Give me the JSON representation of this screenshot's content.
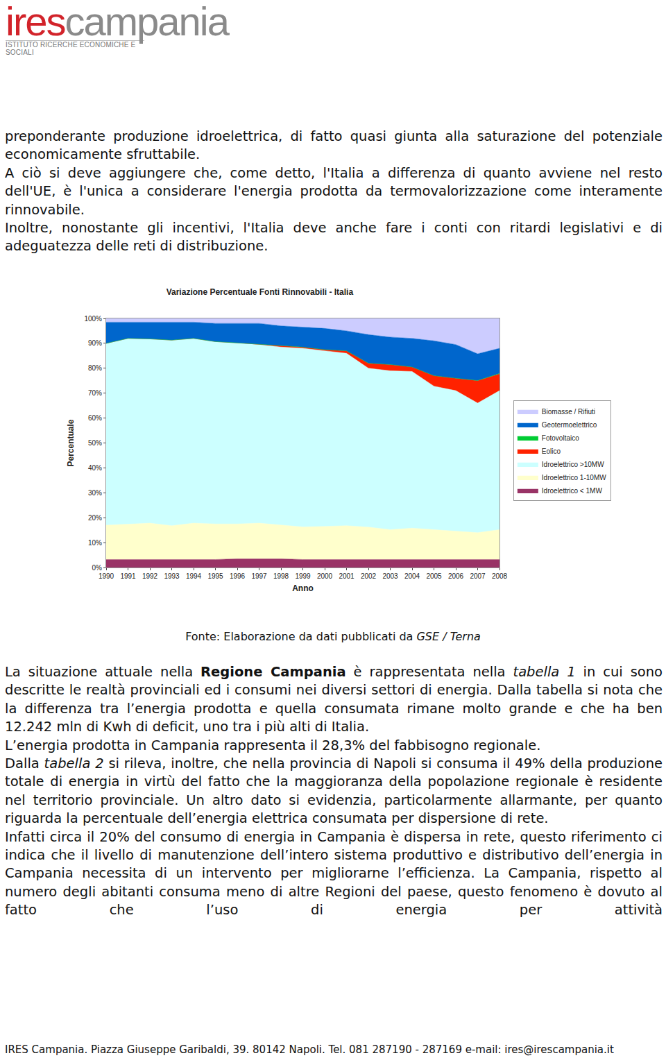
{
  "header": {
    "logo_ires": "ires",
    "logo_campania": "campania",
    "logo_subtitle": "ISTITUTO RICERCHE ECONOMICHE E SOCIALI"
  },
  "paragraphs_top": [
    [
      {
        "text": "preponderante produzione idroelettrica, di fatto quasi giunta alla saturazione del potenziale economicamente sfruttabile.",
        "style": "normal"
      }
    ],
    [
      {
        "text": "A ciò si deve aggiungere che, come detto, l'Italia a differenza di quanto avviene nel resto dell'UE, è l'unica a considerare l'energia prodotta da termovalorizzazione come interamente rinnovabile.",
        "style": "normal"
      }
    ],
    [
      {
        "text": "Inoltre, nonostante gli incentivi, l'Italia deve anche fare i conti con ritardi legislativi e di adeguatezza delle reti di distribuzione.",
        "style": "normal"
      }
    ]
  ],
  "chart_data": {
    "type": "area",
    "stacked": true,
    "title": "Variazione Percentuale Fonti Rinnovabili - Italia",
    "x_label": "Anno",
    "y_label": "Percentuale",
    "x": [
      1990,
      1991,
      1992,
      1993,
      1994,
      1995,
      1996,
      1997,
      1998,
      1999,
      2000,
      2001,
      2002,
      2003,
      2004,
      2005,
      2006,
      2007,
      2008
    ],
    "xlim": [
      1990,
      2008
    ],
    "xticks": [
      1990,
      1991,
      1992,
      1993,
      1994,
      1995,
      1996,
      1997,
      1998,
      1999,
      2000,
      2001,
      2002,
      2003,
      2004,
      2005,
      2006,
      2007,
      2008
    ],
    "ylim": [
      0,
      100
    ],
    "yticks": [
      {
        "value": 0,
        "label": "0%"
      },
      {
        "value": 10,
        "label": "10%"
      },
      {
        "value": 20,
        "label": "20%"
      },
      {
        "value": 30,
        "label": "30%"
      },
      {
        "value": 40,
        "label": "40%"
      },
      {
        "value": 50,
        "label": "50%"
      },
      {
        "value": 60,
        "label": "60%"
      },
      {
        "value": 70,
        "label": "70%"
      },
      {
        "value": 80,
        "label": "80%"
      },
      {
        "value": 90,
        "label": "90%"
      },
      {
        "value": 100,
        "label": "100%"
      }
    ],
    "grid": false,
    "legend": "right",
    "series": [
      {
        "name": "Idroelettrico < 1MW",
        "color": "#993366",
        "values": [
          3.2,
          3.2,
          3.2,
          3.2,
          3.2,
          3.2,
          3.5,
          3.5,
          3.5,
          3.2,
          3.2,
          3.2,
          3.2,
          3.2,
          3.2,
          3.2,
          3.2,
          3.2,
          3.2
        ]
      },
      {
        "name": "Idroelettrico 1-10MW",
        "color": "#ffffcc",
        "values": [
          13.8,
          14.1,
          14.6,
          13.6,
          14.6,
          14.3,
          14,
          14.3,
          13.5,
          13.1,
          13.3,
          13.6,
          13,
          12,
          12.6,
          12,
          11.6,
          10.8,
          12
        ]
      },
      {
        "name": "Idroelettrico >10MW",
        "color": "#ccffff",
        "values": [
          73,
          74.7,
          74,
          74.5,
          74.2,
          73.2,
          72.7,
          71.7,
          71.5,
          71.7,
          70.5,
          69.2,
          63.8,
          63.8,
          62.9,
          57.6,
          56.2,
          52,
          55.8
        ]
      },
      {
        "name": "Eolico",
        "color": "#ff2200",
        "values": [
          0,
          0,
          0,
          0,
          0,
          0,
          0,
          0.1,
          0.5,
          0.5,
          0.5,
          1,
          2,
          2.5,
          1.8,
          4.2,
          5,
          9,
          6.7
        ]
      },
      {
        "name": "Fotovoltaico",
        "color": "#00cc33",
        "values": [
          0,
          0,
          0,
          0,
          0,
          0,
          0,
          0,
          0,
          0,
          0,
          0,
          0,
          0,
          0,
          0,
          0,
          0.1,
          0.2
        ]
      },
      {
        "name": "Geotermoelettrico",
        "color": "#0066cc",
        "values": [
          8.5,
          6.5,
          6.7,
          7.2,
          6.5,
          7.3,
          7.8,
          8.4,
          8,
          8,
          8.5,
          8,
          11.5,
          11,
          11.5,
          14,
          13.5,
          10.7,
          10.1
        ]
      },
      {
        "name": "Biomasse / Rifiuti",
        "color": "#ccccff",
        "values": [
          1.5,
          1.5,
          1.5,
          1.5,
          1.5,
          2,
          2,
          2,
          3,
          3.5,
          4,
          5,
          6.5,
          7.5,
          8,
          9,
          10.5,
          14.2,
          12
        ]
      }
    ]
  },
  "source": [
    {
      "text": "Fonte: Elaborazione da dati pubblicati da ",
      "style": "normal"
    },
    {
      "text": "GSE / Terna",
      "style": "italic"
    }
  ],
  "paragraphs_bottom": [
    [
      {
        "text": "La situazione attuale nella ",
        "style": "normal"
      },
      {
        "text": "Regione Campania",
        "style": "bold"
      },
      {
        "text": " è rappresentata nella ",
        "style": "normal"
      },
      {
        "text": "tabella 1",
        "style": "italic"
      },
      {
        "text": " in cui sono descritte le realtà provinciali ed i consumi nei diversi settori  di energia. Dalla tabella si nota che la differenza tra l’energia prodotta e quella consumata rimane molto grande e che ha ben 12.242 mln di Kwh di deficit, uno tra i più alti di Italia.",
        "style": "normal"
      }
    ],
    [
      {
        "text": "L’energia prodotta in Campania rappresenta il 28,3% del fabbisogno regionale.",
        "style": "normal"
      }
    ],
    [
      {
        "text": "Dalla ",
        "style": "normal"
      },
      {
        "text": "tabella 2",
        "style": "italic"
      },
      {
        "text": " si rileva, inoltre, che nella provincia di Napoli si consuma il 49% della produzione totale di energia in virtù del fatto che la maggioranza della popolazione regionale è residente nel territorio provinciale. Un altro dato si evidenzia, particolarmente allarmante, per quanto riguarda la percentuale dell’energia elettrica consumata per dispersione di rete.",
        "style": "normal"
      }
    ],
    [
      {
        "text": "Infatti circa il 20% del consumo di energia in Campania è dispersa in rete, questo riferimento ci indica che il livello di manutenzione dell’intero sistema produttivo e distributivo dell’energia in Campania necessita di un intervento per migliorarne l’efficienza. La Campania, rispetto al numero degli abitanti consuma meno di altre Regioni del paese, questo fenomeno è dovuto al fatto che l’uso di energia per attività",
        "style": "normal"
      }
    ]
  ],
  "footer": "IRES Campania. Piazza Giuseppe Garibaldi, 39. 80142 Napoli. Tel. 081 287190 - 287169 e-mail: ires@irescampania.it"
}
